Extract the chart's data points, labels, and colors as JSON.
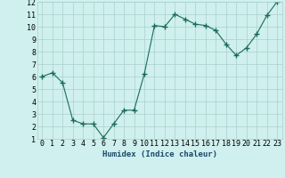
{
  "x": [
    0,
    1,
    2,
    3,
    4,
    5,
    6,
    7,
    8,
    9,
    10,
    11,
    12,
    13,
    14,
    15,
    16,
    17,
    18,
    19,
    20,
    21,
    22,
    23
  ],
  "y": [
    6.0,
    6.3,
    5.5,
    2.5,
    2.2,
    2.2,
    1.1,
    2.2,
    3.3,
    3.3,
    6.2,
    10.1,
    10.0,
    11.0,
    10.6,
    10.2,
    10.1,
    9.7,
    8.6,
    7.7,
    8.3,
    9.4,
    10.9,
    12.0
  ],
  "line_color": "#1a6b5a",
  "marker": "+",
  "marker_size": 4,
  "bg_color": "#cff0ee",
  "grid_color": "#aacfcc",
  "xlabel": "Humidex (Indice chaleur)",
  "xlim": [
    -0.5,
    23.5
  ],
  "ylim": [
    1,
    12
  ],
  "xticks": [
    0,
    1,
    2,
    3,
    4,
    5,
    6,
    7,
    8,
    9,
    10,
    11,
    12,
    13,
    14,
    15,
    16,
    17,
    18,
    19,
    20,
    21,
    22,
    23
  ],
  "yticks": [
    1,
    2,
    3,
    4,
    5,
    6,
    7,
    8,
    9,
    10,
    11,
    12
  ],
  "xlabel_fontsize": 6.5,
  "tick_fontsize": 6.0
}
